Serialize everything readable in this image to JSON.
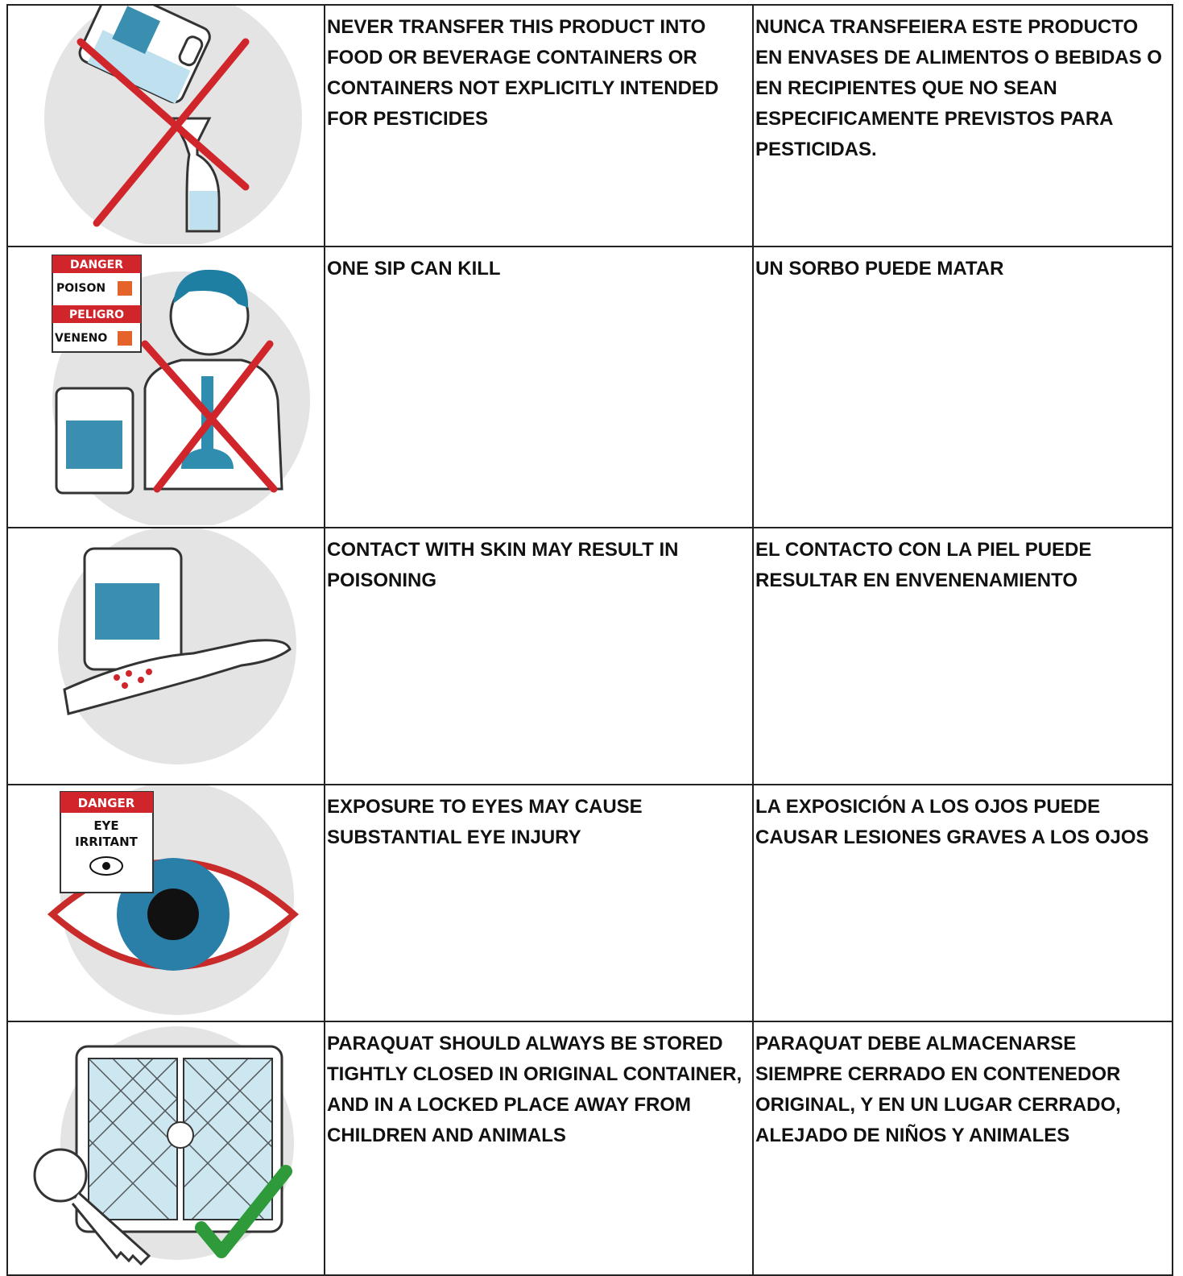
{
  "table": {
    "rows": [
      {
        "english": "NEVER TRANSFER THIS PRODUCT INTO FOOD OR BEVERAGE CONTAINERS OR CONTAINERS NOT EXPLICITLY INTENDED FOR PESTICIDES",
        "spanish": "NUNCA TRANSFEIERA ESTE PRODUCTO EN ENVASES DE ALIMENTOS O BEBIDAS O EN RECIPIENTES QUE NO SEAN ESPECIFICAMENTE PREVISTOS PARA PESTICIDAS."
      },
      {
        "icon_labels": [
          "DANGER",
          "POISON",
          "PELIGRO",
          "VENENO"
        ],
        "english": "ONE SIP CAN KILL",
        "spanish": "UN SORBO PUEDE MATAR"
      },
      {
        "english": "CONTACT WITH SKIN MAY RESULT IN POISONING",
        "spanish": "EL CONTACTO CON LA PIEL PUEDE RESULTAR EN ENVENENAMIENTO"
      },
      {
        "icon_labels": [
          "DANGER",
          "EYE",
          "IRRITANT"
        ],
        "english": "EXPOSURE TO EYES MAY CAUSE SUBSTANTIAL EYE INJURY",
        "spanish": "LA EXPOSICIÓN A LOS OJOS PUEDE CAUSAR LESIONES GRAVES A LOS OJOS"
      },
      {
        "english": "PARAQUAT SHOULD ALWAYS BE STORED TIGHTLY CLOSED IN ORIGINAL CONTAINER, AND IN A LOCKED PLACE AWAY FROM CHILDREN AND ANIMALS",
        "spanish": "PARAQUAT DEBE ALMACENARSE SIEMPRE CERRADO EN CONTENEDOR ORIGINAL, Y EN UN LUGAR CERRADO, ALEJADO DE NIÑOS Y ANIMALES"
      }
    ]
  }
}
